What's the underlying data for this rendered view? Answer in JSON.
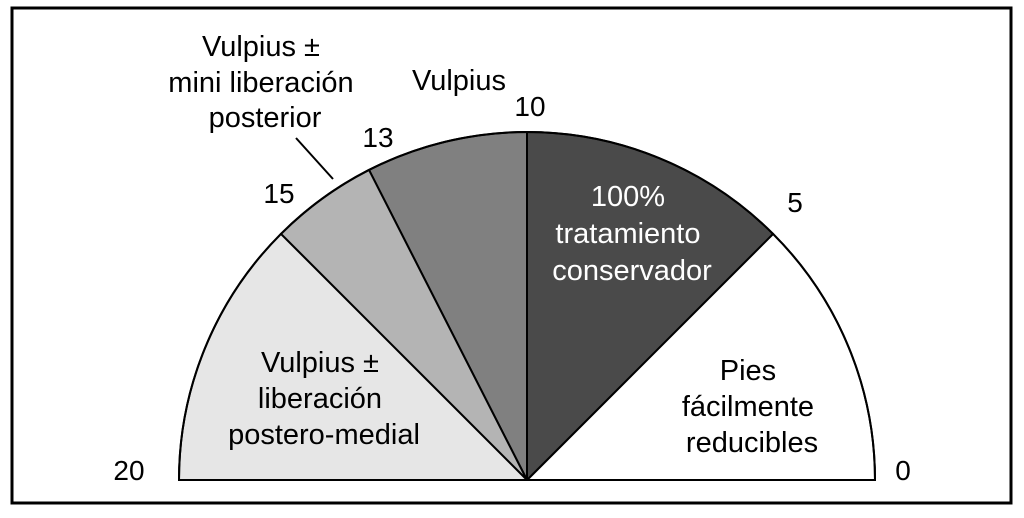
{
  "chart_data": {
    "type": "semicircular-gauge",
    "scale": {
      "min": 0,
      "max": 20,
      "direction": "right-to-left"
    },
    "tick_labels": [
      "20",
      "15",
      "13",
      "10",
      "5",
      "0"
    ],
    "tick_values": [
      20,
      15,
      13,
      10,
      5,
      0
    ],
    "segments": [
      {
        "from": 0,
        "to": 5,
        "color": "#ffffff",
        "label_lines": [
          "Pies",
          "fácilmente",
          "reducibles"
        ]
      },
      {
        "from": 5,
        "to": 10,
        "color": "#4a4a4a",
        "label_lines": [
          "100%",
          "tratamiento",
          "conservador"
        ]
      },
      {
        "from": 10,
        "to": 13,
        "color": "#808080",
        "label_lines": [
          "Vulpius"
        ]
      },
      {
        "from": 13,
        "to": 15,
        "color": "#b4b4b4",
        "label_lines": [
          "Vulpius ±",
          "mini liberación",
          "posterior"
        ]
      },
      {
        "from": 15,
        "to": 20,
        "color": "#e6e6e6",
        "label_lines": [
          "Vulpius ±",
          "liberación",
          "postero-medial"
        ]
      }
    ]
  }
}
